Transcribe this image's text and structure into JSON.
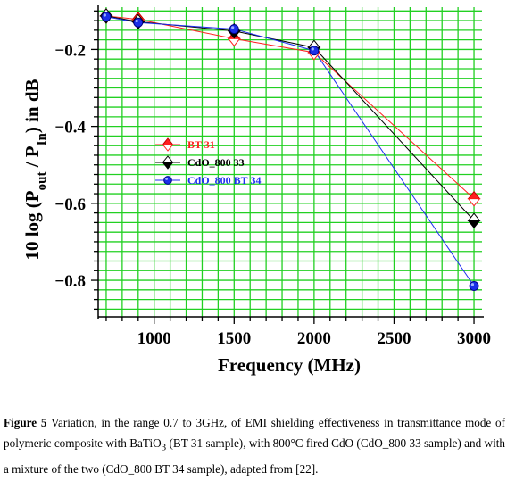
{
  "chart_data": {
    "type": "line",
    "xlabel": "Frequency (MHz)",
    "ylabel_parts": [
      "10 log (P",
      "out",
      " / P",
      "In",
      ") in dB"
    ],
    "x_ticks": [
      1000,
      1500,
      2000,
      2500,
      3000
    ],
    "y_ticks": [
      -0.2,
      -0.4,
      -0.6,
      -0.8
    ],
    "y_tick_labels": [
      "−0.2",
      "−0.4",
      "−0.6",
      "−0.8"
    ],
    "xlim": [
      650,
      3050
    ],
    "ylim": [
      -0.895,
      -0.09
    ],
    "grid": true,
    "legend_position": "center-left",
    "series": [
      {
        "name": "BT 31",
        "color": "#ff2020",
        "marker": "diamond-red",
        "x": [
          700,
          900,
          1500,
          2000,
          3000
        ],
        "y": [
          -0.113,
          -0.122,
          -0.172,
          -0.208,
          -0.588
        ]
      },
      {
        "name": "CdO_800 33",
        "color": "#000000",
        "marker": "diamond-black",
        "x": [
          700,
          900,
          1500,
          2000,
          3000
        ],
        "y": [
          -0.113,
          -0.128,
          -0.152,
          -0.195,
          -0.645
        ]
      },
      {
        "name": "CdO_800 BT 34",
        "color": "#1f2ff0",
        "marker": "circle-blue",
        "x": [
          700,
          900,
          1500,
          2000,
          3000
        ],
        "y": [
          -0.115,
          -0.13,
          -0.147,
          -0.203,
          -0.815
        ]
      }
    ]
  },
  "caption": {
    "label": "Figure 5",
    "text_before_sub": " Variation, in the range 0.7 to 3GHz, of EMI shielding effectiveness in transmittance mode of polymeric composite with BaTiO",
    "sub": "3",
    "text_after_sub": " (BT 31 sample), with 800°C fired CdO (CdO_800 33 sample) and with a mixture of the two (CdO_800 BT 34 sample), adapted from [22]."
  }
}
